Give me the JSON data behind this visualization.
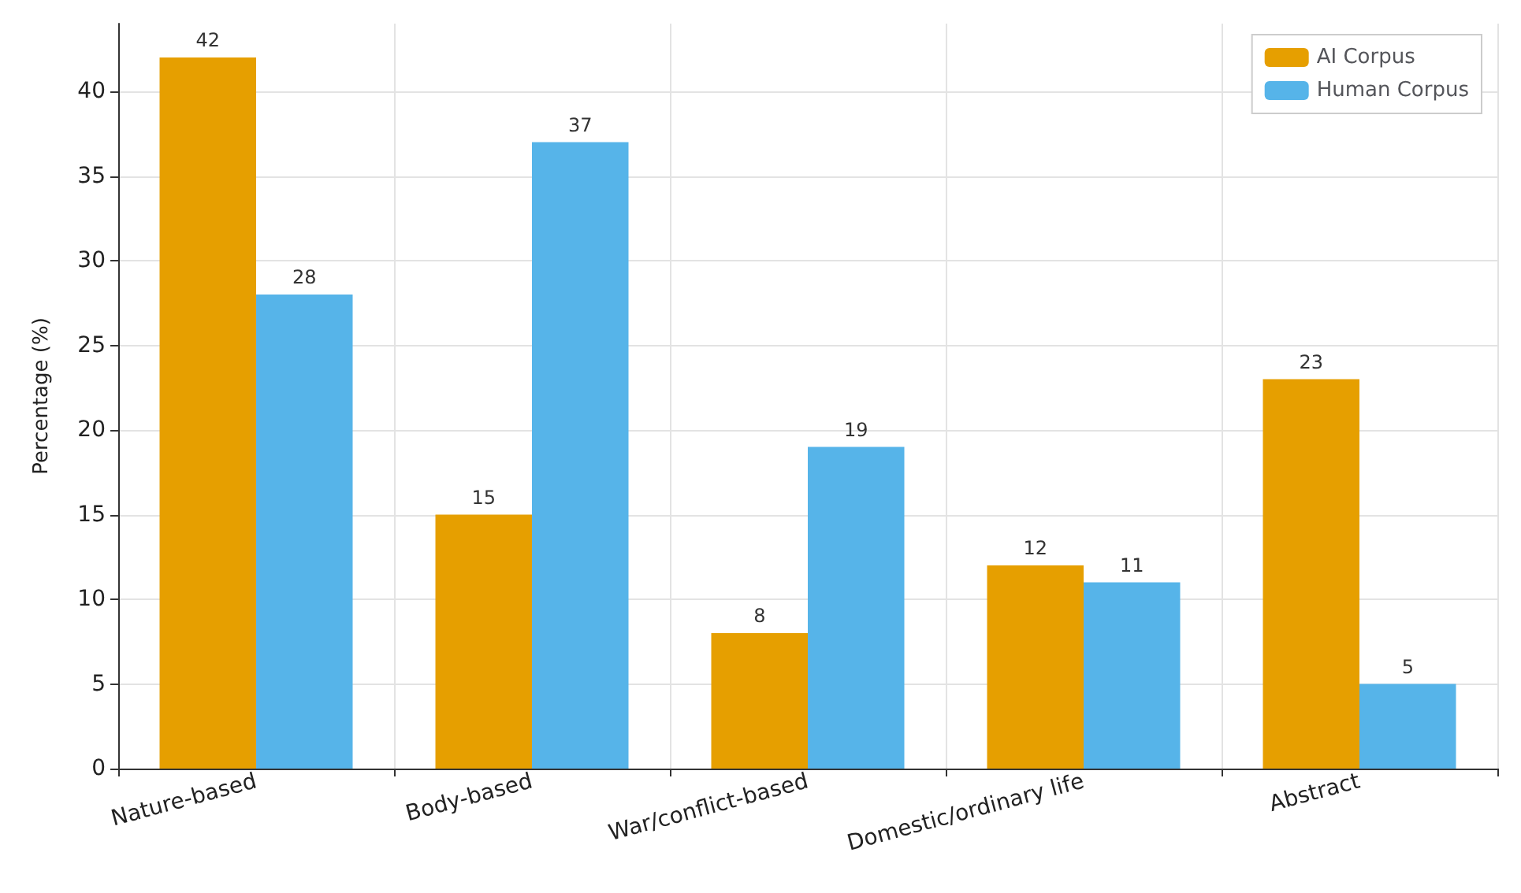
{
  "chart_data": {
    "type": "bar",
    "categories": [
      "Nature-based",
      "Body-based",
      "War/conflict-based",
      "Domestic/ordinary life",
      "Abstract"
    ],
    "series": [
      {
        "name": "AI Corpus",
        "color": "#e69f00",
        "values": [
          42,
          15,
          8,
          12,
          23
        ]
      },
      {
        "name": "Human Corpus",
        "color": "#56b4e9",
        "values": [
          28,
          37,
          19,
          11,
          5
        ]
      }
    ],
    "ylabel": "Percentage (%)",
    "ylim": [
      0,
      44
    ],
    "yticks": [
      0,
      5,
      10,
      15,
      20,
      25,
      30,
      35,
      40
    ],
    "grid": true,
    "legend": "top right",
    "data_labels": true
  }
}
